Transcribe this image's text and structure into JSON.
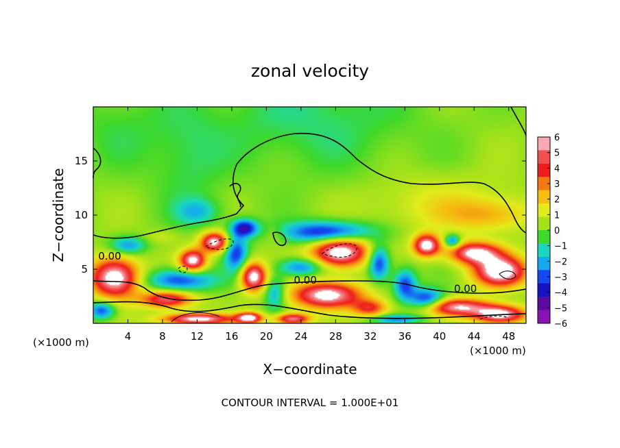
{
  "chart_data": {
    "type": "heatmap",
    "title": "zonal velocity",
    "xlabel": "X−coordinate",
    "ylabel": "Z−coordinate",
    "x_unit_left": "(×1000 m)",
    "x_unit_right": "(×1000 m)",
    "xlim": [
      0,
      50
    ],
    "ylim": [
      0,
      20
    ],
    "xticks": [
      4,
      8,
      12,
      16,
      20,
      24,
      28,
      32,
      36,
      40,
      44,
      48
    ],
    "yticks": [
      5,
      10,
      15
    ],
    "colorbar": {
      "ticks": [
        6,
        5,
        4,
        3,
        2,
        1,
        0,
        -1,
        -2,
        -3,
        -4,
        -5,
        -6
      ],
      "tick_labels": [
        "6",
        "5",
        "4",
        "3",
        "2",
        "1",
        "0",
        "−1",
        "−2",
        "−3",
        "−4",
        "−5",
        "−6"
      ],
      "colors": [
        "#f7a8b0",
        "#f25050",
        "#ee1c1c",
        "#f57a12",
        "#f5be10",
        "#e2ec1c",
        "#a6e21a",
        "#3ed82a",
        "#1ad8be",
        "#15a8ee",
        "#1448f0",
        "#1414c4",
        "#5a0ca0",
        "#8a12b4"
      ],
      "overflow_color": "#ffffff"
    },
    "contour_labels": [
      {
        "text": "0.00",
        "x": 1.9,
        "y": 6.0
      },
      {
        "text": "0.00",
        "x": 24.5,
        "y": 3.8
      },
      {
        "text": "0.00",
        "x": 43.0,
        "y": 3.0
      }
    ],
    "footer": "CONTOUR INTERVAL = 1.000E+01",
    "blobs": [
      {
        "x": 25,
        "y": 19,
        "v": -1.3,
        "sx": 12,
        "sy": 5
      },
      {
        "x": 3,
        "y": 18,
        "v": -0.8,
        "sx": 6,
        "sy": 4
      },
      {
        "x": 11,
        "y": 15,
        "v": -1.0,
        "sx": 4,
        "sy": 5
      },
      {
        "x": 12,
        "y": 10.3,
        "v": -2.2,
        "sx": 2.5,
        "sy": 1.2
      },
      {
        "x": 40,
        "y": 11,
        "v": 1.3,
        "sx": 8,
        "sy": 2.5
      },
      {
        "x": 46,
        "y": 10,
        "v": 2.0,
        "sx": 5,
        "sy": 1.5
      },
      {
        "x": 8,
        "y": 8,
        "v": 0.8,
        "sx": 2,
        "sy": 0.6
      },
      {
        "x": 21,
        "y": 8.2,
        "v": 0.9,
        "sx": 1.2,
        "sy": 0.8
      },
      {
        "x": 4,
        "y": 7.2,
        "v": -3.0,
        "sx": 2,
        "sy": 0.8
      },
      {
        "x": 14,
        "y": 7.5,
        "v": 6.8,
        "sx": 1.6,
        "sy": 0.9
      },
      {
        "x": 11.5,
        "y": 5.8,
        "v": 6.8,
        "sx": 1.5,
        "sy": 1.0
      },
      {
        "x": 17.5,
        "y": 8.8,
        "v": -5.0,
        "sx": 1.5,
        "sy": 0.8
      },
      {
        "x": 16.5,
        "y": 6.5,
        "v": -4.0,
        "sx": 1.3,
        "sy": 1.8
      },
      {
        "x": 28.5,
        "y": 6.6,
        "v": 7.5,
        "sx": 3.2,
        "sy": 1.4
      },
      {
        "x": 27,
        "y": 8.4,
        "v": -5.0,
        "sx": 5,
        "sy": 1.0
      },
      {
        "x": 33,
        "y": 5.6,
        "v": -4.5,
        "sx": 1.2,
        "sy": 1.6
      },
      {
        "x": 24,
        "y": 5.2,
        "v": -3.5,
        "sx": 2.5,
        "sy": 0.8
      },
      {
        "x": 10,
        "y": 4,
        "v": -4.0,
        "sx": 4,
        "sy": 1.0
      },
      {
        "x": 21,
        "y": 2.8,
        "v": -3.0,
        "sx": 1.2,
        "sy": 1.5
      },
      {
        "x": 2.5,
        "y": 4.2,
        "v": 7.5,
        "sx": 2.8,
        "sy": 1.8
      },
      {
        "x": 18.5,
        "y": 4.3,
        "v": 7.0,
        "sx": 1.5,
        "sy": 1.3
      },
      {
        "x": 8.5,
        "y": 2.2,
        "v": 5.5,
        "sx": 3,
        "sy": 0.8
      },
      {
        "x": 27,
        "y": 2.6,
        "v": 7.0,
        "sx": 4,
        "sy": 1.2
      },
      {
        "x": 32,
        "y": 1.4,
        "v": 4.0,
        "sx": 2,
        "sy": 0.8
      },
      {
        "x": 38.5,
        "y": 7.2,
        "v": 7.0,
        "sx": 1.5,
        "sy": 1.0
      },
      {
        "x": 41.5,
        "y": 7.6,
        "v": -4.0,
        "sx": 0.9,
        "sy": 0.6
      },
      {
        "x": 44,
        "y": 6.5,
        "v": 6.5,
        "sx": 3,
        "sy": 1.0
      },
      {
        "x": 47,
        "y": 4.8,
        "v": 7.5,
        "sx": 3,
        "sy": 1.4
      },
      {
        "x": 36,
        "y": 3.6,
        "v": -4.0,
        "sx": 1.3,
        "sy": 1.4
      },
      {
        "x": 38.5,
        "y": 2.2,
        "v": -4.5,
        "sx": 2.0,
        "sy": 1.0
      },
      {
        "x": 42,
        "y": 1.5,
        "v": 6.0,
        "sx": 4,
        "sy": 0.8
      },
      {
        "x": 47,
        "y": 0.8,
        "v": 7.0,
        "sx": 3,
        "sy": 0.8
      },
      {
        "x": 12,
        "y": 0.4,
        "v": 7.0,
        "sx": 4,
        "sy": 0.5
      },
      {
        "x": 18,
        "y": 0.5,
        "v": 7.0,
        "sx": 1.5,
        "sy": 0.5
      },
      {
        "x": 23,
        "y": 0.4,
        "v": 6.0,
        "sx": 2,
        "sy": 0.5
      },
      {
        "x": 35,
        "y": 0.4,
        "v": -3.0,
        "sx": 3,
        "sy": 0.4
      },
      {
        "x": 1,
        "y": 1.2,
        "v": -4.0,
        "sx": 1.5,
        "sy": 0.8
      }
    ]
  }
}
